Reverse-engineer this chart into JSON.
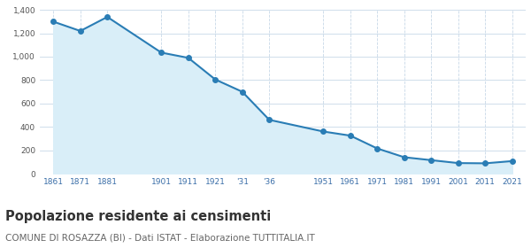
{
  "values": [
    1300,
    1220,
    1340,
    1035,
    990,
    805,
    700,
    460,
    360,
    325,
    215,
    140,
    115,
    90,
    88,
    107
  ],
  "tick_labels": [
    "1861",
    "1871",
    "1881",
    "1901",
    "1911",
    "1921",
    "'31",
    "'36",
    "1951",
    "1961",
    "1971",
    "1981",
    "1991",
    "2001",
    "2011",
    "2021"
  ],
  "x_positions": [
    0,
    1,
    2,
    4,
    5,
    6,
    7,
    8,
    10,
    11,
    12,
    13,
    14,
    15,
    16,
    17
  ],
  "line_color": "#2a7db5",
  "fill_color": "#d9eef8",
  "marker_color": "#2a7db5",
  "background_color": "#ffffff",
  "grid_color": "#c8d8e8",
  "ylim": [
    0,
    1400
  ],
  "yticks": [
    0,
    200,
    400,
    600,
    800,
    1000,
    1200,
    1400
  ],
  "title": "Popolazione residente ai censimenti",
  "subtitle": "COMUNE DI ROSAZZA (BI) - Dati ISTAT - Elaborazione TUTTITALIA.IT",
  "title_fontsize": 10.5,
  "subtitle_fontsize": 7.5,
  "axis_label_color": "#3a6ea8",
  "tick_color": "#555555"
}
